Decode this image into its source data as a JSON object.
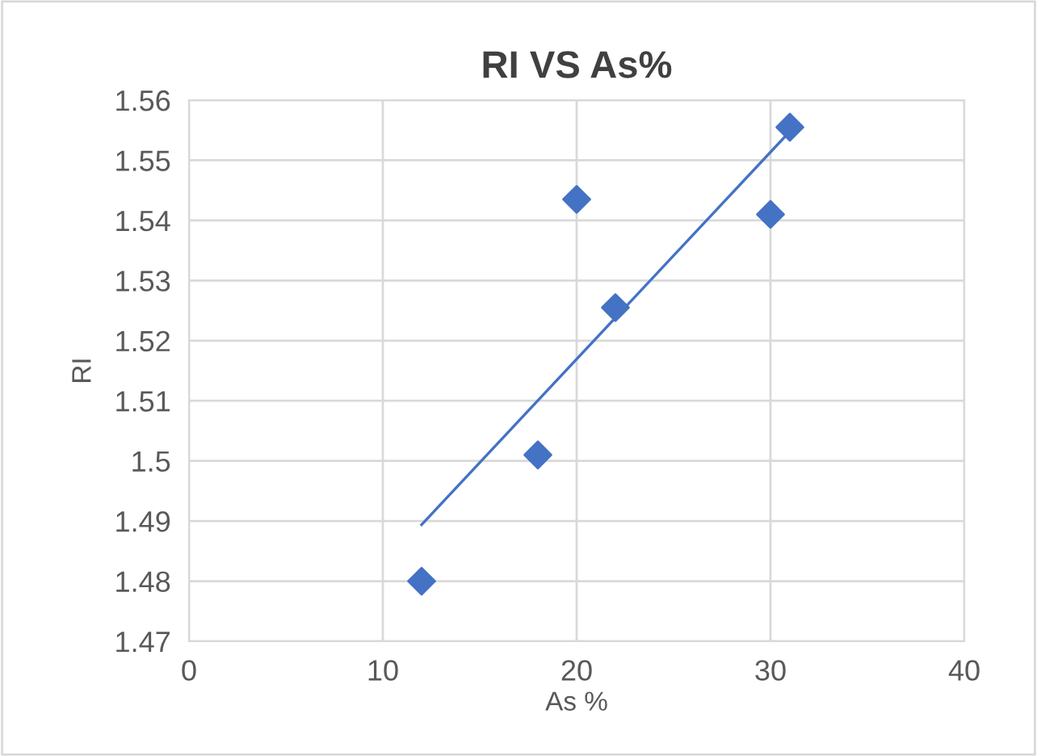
{
  "chart_data": {
    "type": "scatter",
    "title": "RI VS As%",
    "xlabel": "As %",
    "ylabel": "RI",
    "xlim": [
      0,
      40
    ],
    "xticks": [
      0,
      10,
      20,
      30,
      40
    ],
    "ylim": [
      1.47,
      1.56
    ],
    "yticks": [
      {
        "value": 1.47,
        "label": "1.47"
      },
      {
        "value": 1.48,
        "label": "1.48"
      },
      {
        "value": 1.49,
        "label": "1.49"
      },
      {
        "value": 1.5,
        "label": "1.5"
      },
      {
        "value": 1.51,
        "label": "1.51"
      },
      {
        "value": 1.52,
        "label": "1.52"
      },
      {
        "value": 1.53,
        "label": "1.53"
      },
      {
        "value": 1.54,
        "label": "1.54"
      },
      {
        "value": 1.55,
        "label": "1.55"
      },
      {
        "value": 1.56,
        "label": "1.56"
      }
    ],
    "grid": true,
    "marker": "diamond",
    "series": [
      {
        "color": "#4472c4",
        "x": [
          12,
          18,
          20,
          22,
          30,
          31
        ],
        "values": [
          1.48,
          1.501,
          1.5435,
          1.5255,
          1.541,
          1.5555
        ]
      },
      {
        "type": "line",
        "marker": "none",
        "color": "#4472c4",
        "x": [
          12,
          31
        ],
        "values": [
          1.4894,
          1.5548
        ]
      }
    ]
  }
}
